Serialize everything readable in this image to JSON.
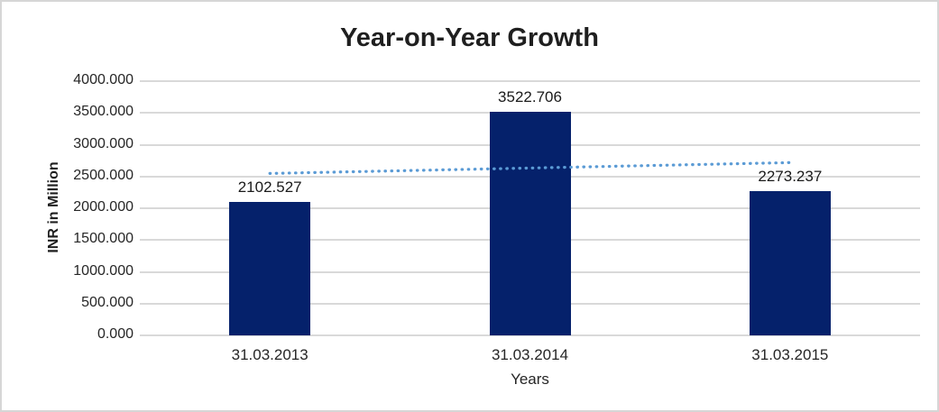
{
  "window": {
    "background_color": "#FFFFFF",
    "border_color": "#D6D6D6"
  },
  "chart_data": {
    "type": "bar",
    "title": "Year-on-Year Growth",
    "categories": [
      "31.03.2013",
      "31.03.2014",
      "31.03.2015"
    ],
    "values": [
      2102.527,
      3522.706,
      2273.237
    ],
    "data_labels": [
      "2102.527",
      "3522.706",
      "2273.237"
    ],
    "xlabel": "Years",
    "ylabel": "INR in Million",
    "ylim": [
      0,
      4000
    ],
    "ytick_step": 500,
    "ytick_labels": [
      "0.000",
      "500.000",
      "1000.000",
      "1500.000",
      "2000.000",
      "2500.000",
      "3000.000",
      "3500.000",
      "4000.000"
    ],
    "grid": "horizontal",
    "gridline_color": "#D9D9D9",
    "legend": "none",
    "bar_color": "#05216B",
    "text_color": "#262626",
    "trendline": {
      "type": "linear",
      "style": "dotted",
      "color": "#5B9BD5",
      "span": "bar1-center to bar3-center"
    }
  }
}
